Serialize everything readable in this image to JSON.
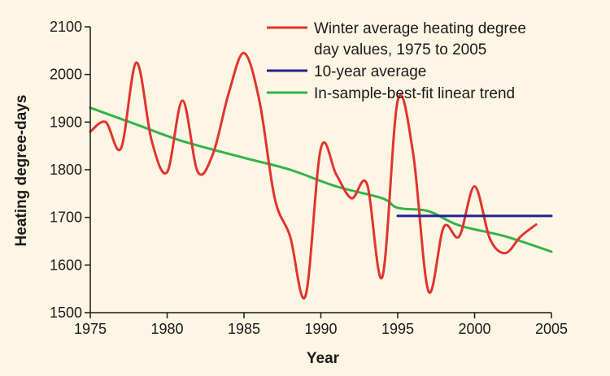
{
  "chart_data": {
    "type": "line",
    "title": "",
    "xlabel": "Year",
    "ylabel": "Heating degree-days",
    "xlim": [
      1975,
      2005
    ],
    "ylim": [
      1500,
      2100
    ],
    "xticks": [
      1975,
      1980,
      1985,
      1990,
      1995,
      2000,
      2005
    ],
    "yticks": [
      1500,
      1600,
      1700,
      1800,
      1900,
      2000,
      2100
    ],
    "legend_position": "top-right",
    "series": [
      {
        "name": "Winter average heating degree day values, 1975 to 2005",
        "legend_lines": [
          "Winter average heating degree",
          "day values, 1975 to 2005"
        ],
        "color": "#e2342f",
        "style": "smooth",
        "points": [
          [
            1975,
            1880
          ],
          [
            1976,
            1900
          ],
          [
            1977,
            1845
          ],
          [
            1978,
            2025
          ],
          [
            1979,
            1860
          ],
          [
            1980,
            1795
          ],
          [
            1981,
            1945
          ],
          [
            1982,
            1795
          ],
          [
            1983,
            1835
          ],
          [
            1984,
            1960
          ],
          [
            1985,
            2045
          ],
          [
            1986,
            1945
          ],
          [
            1987,
            1740
          ],
          [
            1988,
            1660
          ],
          [
            1989,
            1535
          ],
          [
            1990,
            1845
          ],
          [
            1991,
            1790
          ],
          [
            1992,
            1740
          ],
          [
            1993,
            1770
          ],
          [
            1994,
            1575
          ],
          [
            1995,
            1945
          ],
          [
            1996,
            1835
          ],
          [
            1997,
            1545
          ],
          [
            1998,
            1680
          ],
          [
            1999,
            1660
          ],
          [
            2000,
            1765
          ],
          [
            2001,
            1655
          ],
          [
            2002,
            1625
          ],
          [
            2003,
            1660
          ],
          [
            2004,
            1685
          ]
        ]
      },
      {
        "name": "10-year average",
        "legend_lines": [
          "10-year average"
        ],
        "color": "#23238f",
        "style": "straight",
        "points": [
          [
            1995,
            1703
          ],
          [
            2005,
            1703
          ]
        ]
      },
      {
        "name": "In-sample-best-fit linear trend",
        "legend_lines": [
          "In-sample-best-fit linear trend"
        ],
        "color": "#34b34a",
        "style": "smooth",
        "points": [
          [
            1975,
            1930
          ],
          [
            1978,
            1895
          ],
          [
            1981,
            1860
          ],
          [
            1985,
            1825
          ],
          [
            1988,
            1800
          ],
          [
            1991,
            1765
          ],
          [
            1994,
            1740
          ],
          [
            1995,
            1720
          ],
          [
            1997,
            1713
          ],
          [
            1999,
            1683
          ],
          [
            2002,
            1660
          ],
          [
            2005,
            1628
          ]
        ]
      }
    ]
  }
}
